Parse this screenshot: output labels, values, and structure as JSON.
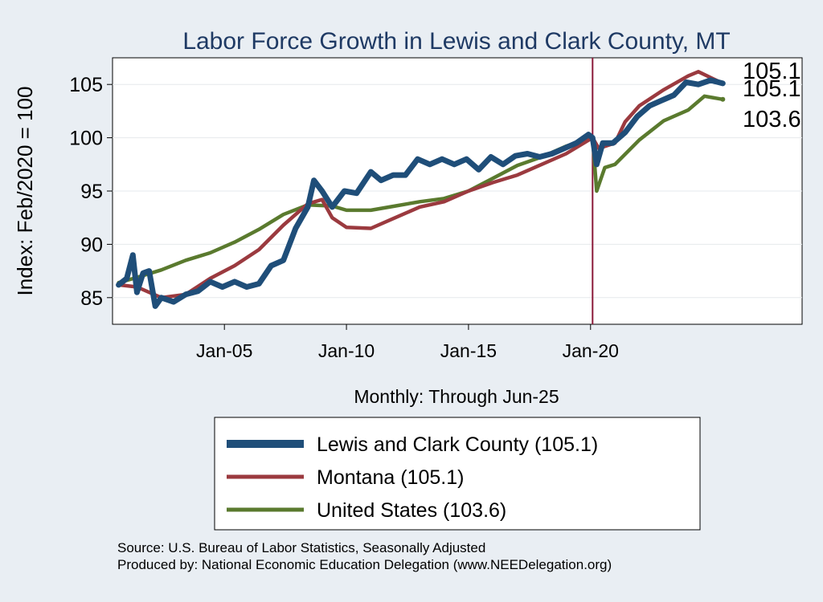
{
  "colors": {
    "background": "#e9eef3",
    "plot_background": "#ffffff",
    "county": "#1f4e79",
    "state": "#9b3a3f",
    "us": "#5a7a2e",
    "title": "#1f3a64",
    "vline": "#8b1a3a",
    "text": "#000000"
  },
  "chart_data": {
    "type": "line",
    "title": "Labor Force Growth in Lewis and Clark  County, MT",
    "xlabel": "Monthly: Through Jun-25",
    "ylabel": "Index: Feb/2020 = 100",
    "xlim": [
      "2000-06",
      "2028-09"
    ],
    "ylim": [
      82.5,
      107.5
    ],
    "x_ticks": [
      {
        "value": "2005-01",
        "label": "Jan-05"
      },
      {
        "value": "2010-01",
        "label": "Jan-10"
      },
      {
        "value": "2015-01",
        "label": "Jan-15"
      },
      {
        "value": "2020-01",
        "label": "Jan-20"
      }
    ],
    "y_ticks": [
      85,
      90,
      95,
      100,
      105
    ],
    "grid": "horizontal",
    "reference_line": {
      "x": "2020-02"
    },
    "legend_position": "bottom",
    "end_labels": [
      "105.1",
      "105.1",
      "103.6"
    ],
    "series": [
      {
        "name": "Lewis and Clark  County (105.1)",
        "color_key": "county",
        "points": [
          [
            "2000-09",
            86.2
          ],
          [
            "2001-01",
            86.8
          ],
          [
            "2001-04",
            89.0
          ],
          [
            "2001-06",
            85.5
          ],
          [
            "2001-09",
            87.3
          ],
          [
            "2001-12",
            87.5
          ],
          [
            "2002-03",
            84.2
          ],
          [
            "2002-06",
            85.0
          ],
          [
            "2002-12",
            84.6
          ],
          [
            "2003-06",
            85.3
          ],
          [
            "2003-12",
            85.6
          ],
          [
            "2004-06",
            86.5
          ],
          [
            "2004-12",
            86.0
          ],
          [
            "2005-06",
            86.5
          ],
          [
            "2005-12",
            86.0
          ],
          [
            "2006-06",
            86.3
          ],
          [
            "2006-12",
            88.0
          ],
          [
            "2007-06",
            88.5
          ],
          [
            "2007-12",
            91.5
          ],
          [
            "2008-06",
            93.5
          ],
          [
            "2008-09",
            96.0
          ],
          [
            "2009-01",
            95.0
          ],
          [
            "2009-06",
            93.5
          ],
          [
            "2009-12",
            95.0
          ],
          [
            "2010-06",
            94.8
          ],
          [
            "2011-01",
            96.8
          ],
          [
            "2011-06",
            96.0
          ],
          [
            "2011-12",
            96.5
          ],
          [
            "2012-06",
            96.5
          ],
          [
            "2012-12",
            98.0
          ],
          [
            "2013-06",
            97.5
          ],
          [
            "2013-12",
            98.0
          ],
          [
            "2014-06",
            97.5
          ],
          [
            "2014-12",
            98.0
          ],
          [
            "2015-06",
            97.0
          ],
          [
            "2015-12",
            98.2
          ],
          [
            "2016-06",
            97.5
          ],
          [
            "2016-12",
            98.3
          ],
          [
            "2017-06",
            98.5
          ],
          [
            "2017-12",
            98.2
          ],
          [
            "2018-06",
            98.5
          ],
          [
            "2018-12",
            99.0
          ],
          [
            "2019-06",
            99.5
          ],
          [
            "2019-12",
            100.3
          ],
          [
            "2020-02",
            100.0
          ],
          [
            "2020-04",
            97.5
          ],
          [
            "2020-07",
            99.5
          ],
          [
            "2020-12",
            99.5
          ],
          [
            "2021-06",
            100.5
          ],
          [
            "2021-12",
            102.0
          ],
          [
            "2022-06",
            103.0
          ],
          [
            "2022-12",
            103.5
          ],
          [
            "2023-06",
            104.0
          ],
          [
            "2023-12",
            105.2
          ],
          [
            "2024-06",
            105.0
          ],
          [
            "2024-12",
            105.4
          ],
          [
            "2025-06",
            105.1
          ]
        ]
      },
      {
        "name": "Montana (105.1)",
        "color_key": "state",
        "points": [
          [
            "2000-09",
            86.2
          ],
          [
            "2001-06",
            86.0
          ],
          [
            "2002-06",
            85.0
          ],
          [
            "2003-06",
            85.3
          ],
          [
            "2004-06",
            86.8
          ],
          [
            "2005-06",
            88.0
          ],
          [
            "2006-06",
            89.5
          ],
          [
            "2007-06",
            91.8
          ],
          [
            "2008-06",
            93.8
          ],
          [
            "2009-01",
            94.2
          ],
          [
            "2009-06",
            92.5
          ],
          [
            "2010-01",
            91.6
          ],
          [
            "2011-01",
            91.5
          ],
          [
            "2012-01",
            92.5
          ],
          [
            "2013-01",
            93.5
          ],
          [
            "2014-01",
            94.0
          ],
          [
            "2015-01",
            95.0
          ],
          [
            "2016-01",
            95.8
          ],
          [
            "2017-01",
            96.5
          ],
          [
            "2018-01",
            97.5
          ],
          [
            "2019-01",
            98.5
          ],
          [
            "2020-02",
            100.0
          ],
          [
            "2020-05",
            99.0
          ],
          [
            "2021-01",
            99.5
          ],
          [
            "2021-06",
            101.5
          ],
          [
            "2022-01",
            103.0
          ],
          [
            "2023-01",
            104.5
          ],
          [
            "2024-01",
            105.8
          ],
          [
            "2024-06",
            106.2
          ],
          [
            "2025-06",
            105.1
          ]
        ]
      },
      {
        "name": "United States (103.6)",
        "color_key": "us",
        "points": [
          [
            "2000-09",
            86.4
          ],
          [
            "2001-06",
            86.9
          ],
          [
            "2002-06",
            87.6
          ],
          [
            "2003-06",
            88.5
          ],
          [
            "2004-06",
            89.2
          ],
          [
            "2005-06",
            90.2
          ],
          [
            "2006-06",
            91.4
          ],
          [
            "2007-06",
            92.8
          ],
          [
            "2008-06",
            93.7
          ],
          [
            "2009-06",
            93.6
          ],
          [
            "2010-01",
            93.2
          ],
          [
            "2011-01",
            93.2
          ],
          [
            "2012-01",
            93.6
          ],
          [
            "2013-01",
            94.0
          ],
          [
            "2014-01",
            94.3
          ],
          [
            "2015-01",
            95.0
          ],
          [
            "2016-01",
            96.2
          ],
          [
            "2017-01",
            97.4
          ],
          [
            "2018-01",
            98.2
          ],
          [
            "2019-01",
            99.2
          ],
          [
            "2020-02",
            100.0
          ],
          [
            "2020-04",
            95.0
          ],
          [
            "2020-08",
            97.2
          ],
          [
            "2021-01",
            97.5
          ],
          [
            "2022-01",
            99.8
          ],
          [
            "2023-01",
            101.6
          ],
          [
            "2024-01",
            102.6
          ],
          [
            "2024-09",
            103.9
          ],
          [
            "2025-06",
            103.6
          ]
        ]
      }
    ]
  },
  "footer": {
    "source": "Source: U.S. Bureau of Labor Statistics, Seasonally Adjusted",
    "produced_by": "Produced by: National Economic Education Delegation (www.NEEDelegation.org)"
  }
}
